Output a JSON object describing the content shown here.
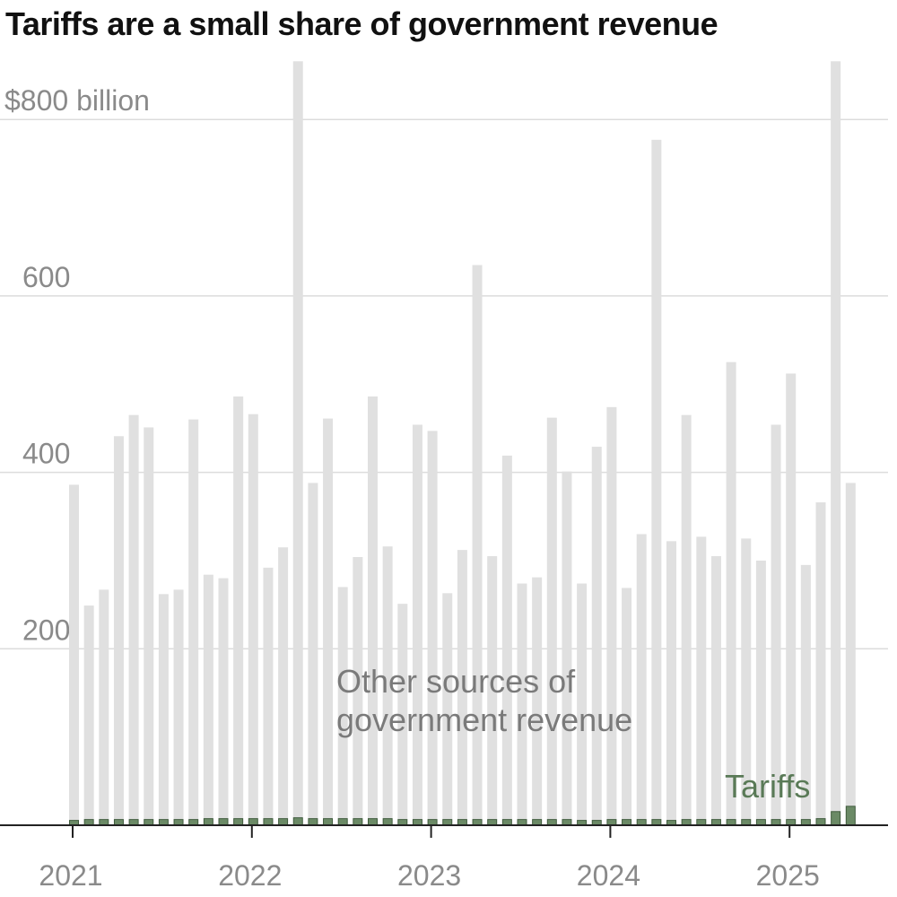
{
  "chart_data": {
    "type": "bar",
    "title": "Tariffs are a small share of government revenue",
    "stacked": true,
    "ylim": [
      0,
      860
    ],
    "yticks": [
      200,
      400,
      600,
      800
    ],
    "ytick_labels": [
      "200",
      "400",
      "600",
      "$800 billion"
    ],
    "xtick_years": [
      "2021",
      "2022",
      "2023",
      "2024",
      "2025"
    ],
    "categories": [
      "2021-01",
      "2021-02",
      "2021-03",
      "2021-04",
      "2021-05",
      "2021-06",
      "2021-07",
      "2021-08",
      "2021-09",
      "2021-10",
      "2021-11",
      "2021-12",
      "2022-01",
      "2022-02",
      "2022-03",
      "2022-04",
      "2022-05",
      "2022-06",
      "2022-07",
      "2022-08",
      "2022-09",
      "2022-10",
      "2022-11",
      "2022-12",
      "2023-01",
      "2023-02",
      "2023-03",
      "2023-04",
      "2023-05",
      "2023-06",
      "2023-07",
      "2023-08",
      "2023-09",
      "2023-10",
      "2023-11",
      "2023-12",
      "2024-01",
      "2024-02",
      "2024-03",
      "2024-04",
      "2024-05",
      "2024-06",
      "2024-07",
      "2024-08",
      "2024-09",
      "2024-10",
      "2024-11",
      "2024-12",
      "2025-01",
      "2025-02",
      "2025-03",
      "2025-04",
      "2025-05"
    ],
    "series": [
      {
        "name": "Tariffs",
        "color": "#6b8a66",
        "values": [
          6,
          7,
          7,
          7,
          7,
          7,
          7,
          7,
          7,
          8,
          8,
          8,
          8,
          8,
          8,
          9,
          8,
          8,
          8,
          8,
          8,
          8,
          7,
          7,
          7,
          7,
          7,
          7,
          7,
          7,
          7,
          7,
          7,
          7,
          6,
          6,
          7,
          7,
          7,
          7,
          6,
          7,
          7,
          7,
          7,
          7,
          7,
          7,
          7,
          7,
          8,
          16,
          22
        ]
      },
      {
        "name": "Other sources of government revenue",
        "color": "#e0e0e0",
        "values": [
          380,
          242,
          260,
          434,
          458,
          444,
          255,
          260,
          453,
          276,
          272,
          478,
          458,
          284,
          307,
          857,
          380,
          453,
          262,
          296,
          478,
          308,
          244,
          447,
          440,
          256,
          305,
          628,
          298,
          412,
          267,
          274,
          455,
          394,
          268,
          423,
          467,
          262,
          323,
          770,
          316,
          458,
          320,
          298,
          518,
          318,
          293,
          447,
          505,
          288,
          358,
          850,
          366
        ]
      }
    ],
    "annotations": [
      {
        "name": "other-sources",
        "lines": [
          "Other sources of",
          "government revenue"
        ]
      },
      {
        "name": "tariffs",
        "lines": [
          "Tariffs"
        ]
      }
    ]
  }
}
